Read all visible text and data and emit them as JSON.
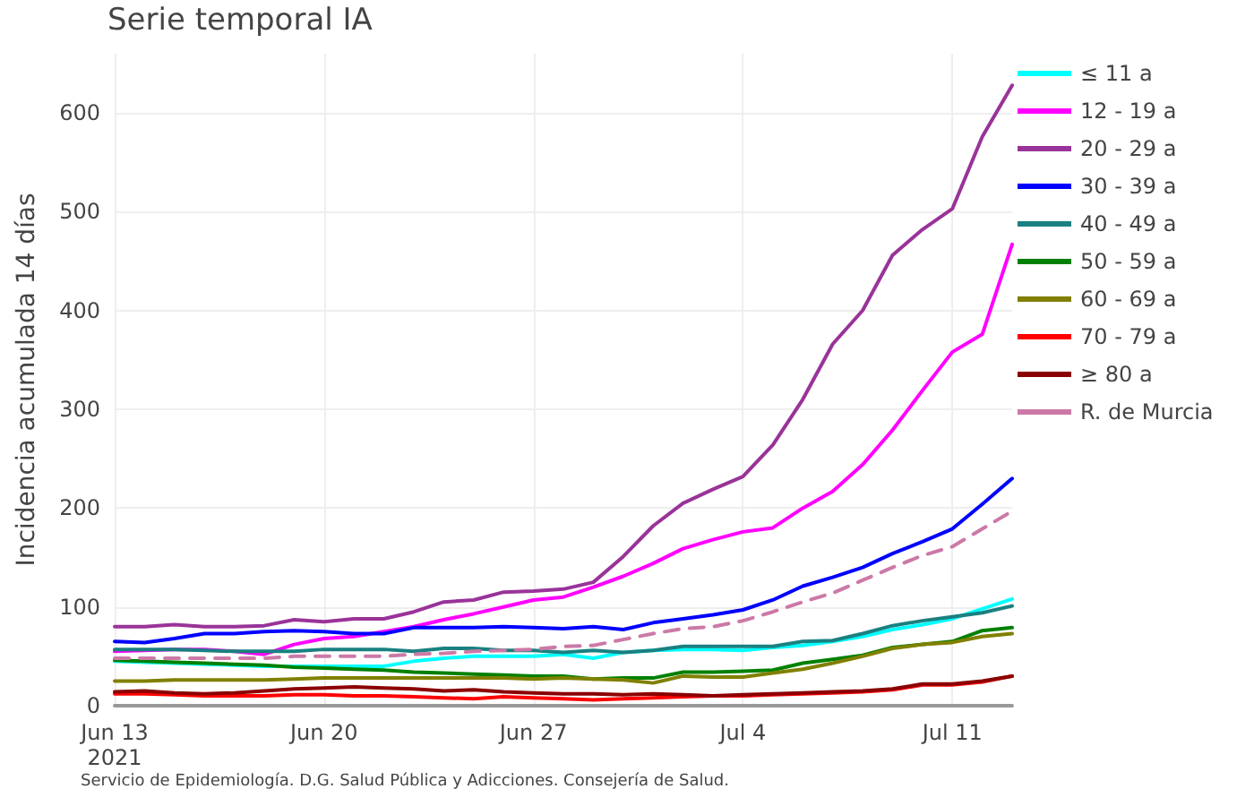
{
  "chart_data": {
    "type": "line",
    "title": "Serie temporal IA",
    "ylabel": "Incidencia acumulada 14 días",
    "annotations": [
      "Servicio de Epidemiología. D.G. Salud Pública y Adicciones. Consejería de Salud."
    ],
    "x": [
      "2021-06-13",
      "2021-06-14",
      "2021-06-15",
      "2021-06-16",
      "2021-06-17",
      "2021-06-18",
      "2021-06-19",
      "2021-06-20",
      "2021-06-21",
      "2021-06-22",
      "2021-06-23",
      "2021-06-24",
      "2021-06-25",
      "2021-06-26",
      "2021-06-27",
      "2021-06-28",
      "2021-06-29",
      "2021-06-30",
      "2021-07-01",
      "2021-07-02",
      "2021-07-03",
      "2021-07-04",
      "2021-07-05",
      "2021-07-06",
      "2021-07-07",
      "2021-07-08",
      "2021-07-09",
      "2021-07-10",
      "2021-07-11",
      "2021-07-12",
      "2021-07-13"
    ],
    "xlim": [
      "2021-06-13",
      "2021-07-13"
    ],
    "xticks": [
      {
        "value": "2021-06-13",
        "label": "Jun 13\n2021"
      },
      {
        "value": "2021-06-20",
        "label": "Jun 20"
      },
      {
        "value": "2021-06-27",
        "label": "Jun 27"
      },
      {
        "value": "2021-07-04",
        "label": "Jul 4"
      },
      {
        "value": "2021-07-11",
        "label": "Jul 11"
      }
    ],
    "ylim": [
      0,
      660
    ],
    "yticks": [
      0,
      100,
      200,
      300,
      400,
      500,
      600
    ],
    "grid": true,
    "legend": "right",
    "marker": "none",
    "series": [
      {
        "name": "≤ 11 a",
        "color": "#00ffff",
        "values": [
          45,
          44,
          43,
          42,
          41,
          40,
          40,
          40,
          40,
          40,
          45,
          48,
          50,
          50,
          50,
          52,
          48,
          54,
          56,
          57,
          57,
          56,
          59,
          61,
          65,
          70,
          77,
          82,
          88,
          98,
          108
        ]
      },
      {
        "name": "12 - 19 a",
        "color": "#ff00ff",
        "values": [
          55,
          56,
          57,
          57,
          55,
          52,
          62,
          68,
          70,
          75,
          80,
          87,
          93,
          100,
          107,
          110,
          120,
          131,
          144,
          159,
          168,
          176,
          180,
          200,
          217,
          244,
          279,
          319,
          358,
          376,
          467
        ]
      },
      {
        "name": "20 - 29 a",
        "color": "#993399",
        "values": [
          80,
          80,
          82,
          80,
          80,
          81,
          87,
          85,
          88,
          88,
          95,
          105,
          107,
          115,
          116,
          118,
          125,
          151,
          182,
          205,
          219,
          232,
          264,
          310,
          366,
          400,
          456,
          482,
          503,
          576,
          628
        ]
      },
      {
        "name": "30 - 39 a",
        "color": "#0000ff",
        "values": [
          65,
          64,
          68,
          73,
          73,
          75,
          76,
          75,
          73,
          73,
          79,
          79,
          79,
          80,
          79,
          78,
          80,
          77,
          84,
          88,
          92,
          97,
          107,
          121,
          130,
          140,
          154,
          166,
          179,
          204,
          230
        ]
      },
      {
        "name": "40 - 49 a",
        "color": "#1a8080",
        "values": [
          57,
          57,
          57,
          56,
          55,
          55,
          55,
          57,
          57,
          57,
          55,
          58,
          58,
          56,
          56,
          54,
          56,
          54,
          56,
          60,
          60,
          60,
          60,
          65,
          66,
          73,
          81,
          86,
          90,
          94,
          101
        ]
      },
      {
        "name": "50 - 59 a",
        "color": "#008000",
        "values": [
          46,
          45,
          44,
          43,
          42,
          41,
          39,
          38,
          37,
          36,
          34,
          33,
          32,
          31,
          30,
          30,
          27,
          28,
          28,
          34,
          34,
          35,
          36,
          43,
          47,
          51,
          59,
          62,
          65,
          76,
          79
        ]
      },
      {
        "name": "60 - 69 a",
        "color": "#808000",
        "values": [
          25,
          25,
          26,
          26,
          26,
          26,
          27,
          28,
          28,
          28,
          28,
          28,
          28,
          28,
          27,
          28,
          27,
          26,
          23,
          30,
          29,
          29,
          33,
          37,
          43,
          50,
          58,
          62,
          64,
          70,
          73
        ]
      },
      {
        "name": "70 - 79 a",
        "color": "#ff0000",
        "values": [
          12,
          12,
          11,
          10,
          10,
          10,
          11,
          11,
          10,
          10,
          9,
          8,
          7,
          9,
          8,
          7,
          6,
          7,
          8,
          9,
          10,
          10,
          11,
          12,
          13,
          14,
          16,
          21,
          21,
          24,
          30
        ]
      },
      {
        "name": "≥ 80 a",
        "color": "#8b0000",
        "values": [
          14,
          15,
          13,
          12,
          13,
          15,
          17,
          18,
          19,
          18,
          17,
          15,
          16,
          14,
          13,
          12,
          12,
          11,
          12,
          11,
          10,
          11,
          12,
          13,
          14,
          15,
          17,
          22,
          22,
          25,
          30
        ]
      },
      {
        "name": "R. de Murcia",
        "color": "#cc79a7",
        "line_style": "dashed",
        "values": [
          48,
          48,
          48,
          48,
          48,
          48,
          50,
          50,
          50,
          50,
          52,
          53,
          55,
          56,
          57,
          60,
          61,
          67,
          73,
          78,
          80,
          86,
          95,
          105,
          114,
          127,
          140,
          152,
          161,
          179,
          197
        ]
      }
    ]
  }
}
